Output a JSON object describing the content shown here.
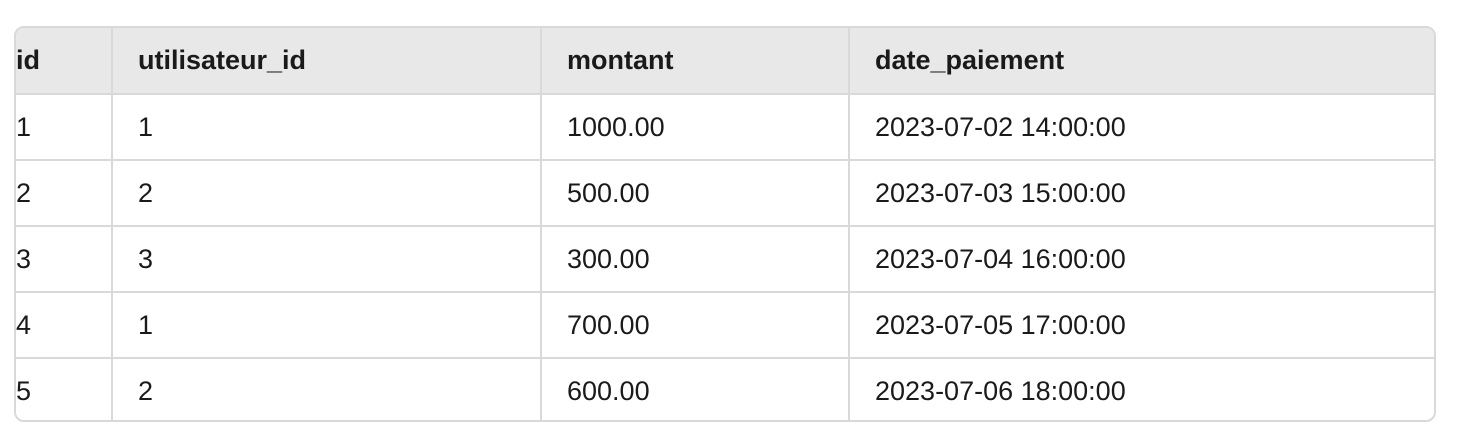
{
  "table": {
    "columns": [
      "id",
      "utilisateur_id",
      "montant",
      "date_paiement"
    ],
    "rows": [
      [
        "1",
        "1",
        "1000.00",
        "2023-07-02 14:00:00"
      ],
      [
        "2",
        "2",
        "500.00",
        "2023-07-03 15:00:00"
      ],
      [
        "3",
        "3",
        "300.00",
        "2023-07-04 16:00:00"
      ],
      [
        "4",
        "1",
        "700.00",
        "2023-07-05 17:00:00"
      ],
      [
        "5",
        "2",
        "600.00",
        "2023-07-06 18:00:00"
      ]
    ]
  },
  "colors": {
    "header_background": "#e8e8e8",
    "border": "#d9d9d9",
    "text": "#1a1a1a"
  }
}
